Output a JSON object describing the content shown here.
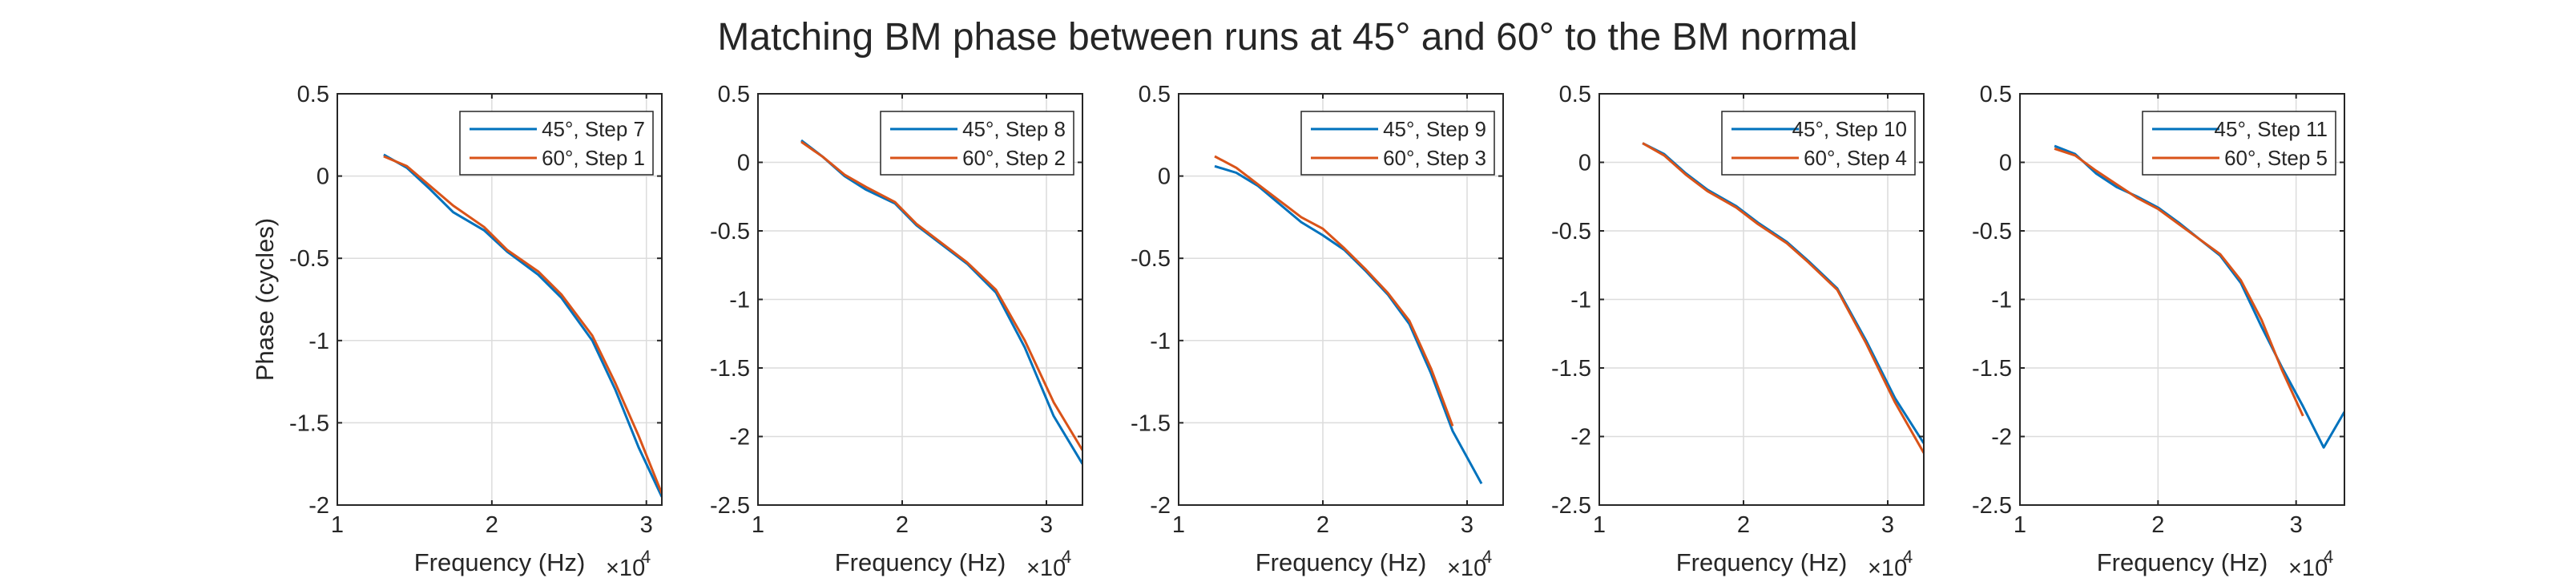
{
  "figure": {
    "title": "Matching BM phase between runs at 45° and 60° to the BM normal"
  },
  "colors": {
    "series1": "#0072BD",
    "series2": "#D95319",
    "grid": "#dcdcdc",
    "axis": "#262626"
  },
  "chart_data": [
    {
      "type": "line",
      "xlabel": "Frequency (Hz)",
      "ylabel": "Phase (cycles)",
      "x_exponent_label": "×10",
      "x_exponent": "4",
      "xlim": [
        10000,
        31000
      ],
      "ylim": [
        -2,
        0.5
      ],
      "xticks": [
        10000,
        20000,
        30000
      ],
      "xtick_labels": [
        "1",
        "2",
        "3"
      ],
      "yticks": [
        -2,
        -1.5,
        -1,
        -0.5,
        0,
        0.5
      ],
      "ytick_labels": [
        "-2",
        "-1.5",
        "-1",
        "-0.5",
        "0",
        "0.5"
      ],
      "grid": true,
      "legend_position": "top-right",
      "series": [
        {
          "name": "45°, Step 7",
          "x": [
            13000,
            14500,
            16000,
            17500,
            19500,
            21000,
            23000,
            24500,
            26500,
            28000,
            29500,
            31000
          ],
          "y": [
            0.13,
            0.05,
            -0.08,
            -0.22,
            -0.33,
            -0.46,
            -0.6,
            -0.74,
            -1.0,
            -1.3,
            -1.65,
            -1.95
          ]
        },
        {
          "name": "60°, Step 1",
          "x": [
            13000,
            14500,
            16000,
            17500,
            19500,
            21000,
            23000,
            24500,
            26500,
            28000,
            29500,
            31000
          ],
          "y": [
            0.12,
            0.06,
            -0.06,
            -0.18,
            -0.31,
            -0.45,
            -0.58,
            -0.72,
            -0.97,
            -1.26,
            -1.58,
            -1.93
          ]
        }
      ]
    },
    {
      "type": "line",
      "xlabel": "Frequency (Hz)",
      "ylabel": "",
      "x_exponent_label": "×10",
      "x_exponent": "4",
      "xlim": [
        10000,
        32500
      ],
      "ylim": [
        -2.5,
        0.5
      ],
      "xticks": [
        10000,
        20000,
        30000
      ],
      "xtick_labels": [
        "1",
        "2",
        "3"
      ],
      "yticks": [
        -2.5,
        -2,
        -1.5,
        -1,
        -0.5,
        0,
        0.5
      ],
      "ytick_labels": [
        "-2.5",
        "-2",
        "-1.5",
        "-1",
        "-0.5",
        "0",
        "0.5"
      ],
      "grid": true,
      "legend_position": "top-right",
      "series": [
        {
          "name": "45°, Step 8",
          "x": [
            13000,
            14500,
            16000,
            17500,
            19500,
            21000,
            23000,
            24500,
            26500,
            28500,
            30500,
            32500
          ],
          "y": [
            0.16,
            0.04,
            -0.1,
            -0.2,
            -0.3,
            -0.46,
            -0.62,
            -0.74,
            -0.95,
            -1.35,
            -1.85,
            -2.2
          ]
        },
        {
          "name": "60°, Step 2",
          "x": [
            13000,
            14500,
            16000,
            17500,
            19500,
            21000,
            23000,
            24500,
            26500,
            28500,
            30500,
            32500
          ],
          "y": [
            0.15,
            0.04,
            -0.09,
            -0.18,
            -0.29,
            -0.45,
            -0.61,
            -0.73,
            -0.93,
            -1.3,
            -1.75,
            -2.1
          ]
        }
      ]
    },
    {
      "type": "line",
      "xlabel": "Frequency (Hz)",
      "ylabel": "",
      "x_exponent_label": "×10",
      "x_exponent": "4",
      "xlim": [
        10000,
        32500
      ],
      "ylim": [
        -2,
        0.5
      ],
      "xticks": [
        10000,
        20000,
        30000
      ],
      "xtick_labels": [
        "1",
        "2",
        "3"
      ],
      "yticks": [
        -2,
        -1.5,
        -1,
        -0.5,
        0,
        0.5
      ],
      "ytick_labels": [
        "-2",
        "-1.5",
        "-1",
        "-0.5",
        "0",
        "0.5"
      ],
      "grid": true,
      "legend_position": "top-right",
      "series": [
        {
          "name": "45°, Step 9",
          "x": [
            12500,
            14000,
            15500,
            17000,
            18500,
            20000,
            21500,
            23000,
            24500,
            26000,
            27500,
            29000,
            31000
          ],
          "y": [
            0.06,
            0.02,
            -0.06,
            -0.17,
            -0.28,
            -0.36,
            -0.45,
            -0.58,
            -0.72,
            -0.9,
            -1.2,
            -1.55,
            -1.87
          ]
        },
        {
          "name": "60°, Step 3",
          "x": [
            12500,
            14000,
            15500,
            17000,
            18500,
            20000,
            21500,
            23000,
            24500,
            26000,
            27500,
            29000
          ],
          "y": [
            0.12,
            0.05,
            -0.05,
            -0.15,
            -0.25,
            -0.32,
            -0.44,
            -0.57,
            -0.71,
            -0.88,
            -1.17,
            -1.52
          ]
        }
      ]
    },
    {
      "type": "line",
      "xlabel": "Frequency (Hz)",
      "ylabel": "",
      "x_exponent_label": "×10",
      "x_exponent": "4",
      "xlim": [
        10000,
        32500
      ],
      "ylim": [
        -2.5,
        0.5
      ],
      "xticks": [
        10000,
        20000,
        30000
      ],
      "xtick_labels": [
        "1",
        "2",
        "3"
      ],
      "yticks": [
        -2.5,
        -2,
        -1.5,
        -1,
        -0.5,
        0,
        0.5
      ],
      "ytick_labels": [
        "-2.5",
        "-2",
        "-1.5",
        "-1",
        "-0.5",
        "0",
        "0.5"
      ],
      "grid": true,
      "legend_position": "top-right",
      "series": [
        {
          "name": "45°, Step 10",
          "x": [
            13000,
            14500,
            16000,
            17500,
            19500,
            21000,
            23000,
            24500,
            26500,
            28500,
            30500,
            32500
          ],
          "y": [
            0.14,
            0.06,
            -0.08,
            -0.2,
            -0.32,
            -0.44,
            -0.58,
            -0.72,
            -0.92,
            -1.3,
            -1.72,
            -2.05
          ]
        },
        {
          "name": "60°, Step 4",
          "x": [
            13000,
            14500,
            16000,
            17500,
            19500,
            21000,
            23000,
            24500,
            26500,
            28500,
            30500,
            32500
          ],
          "y": [
            0.14,
            0.05,
            -0.09,
            -0.21,
            -0.33,
            -0.45,
            -0.59,
            -0.73,
            -0.93,
            -1.32,
            -1.75,
            -2.12
          ]
        }
      ]
    },
    {
      "type": "line",
      "xlabel": "Frequency (Hz)",
      "ylabel": "",
      "x_exponent_label": "×10",
      "x_exponent": "4",
      "xlim": [
        10000,
        33500
      ],
      "ylim": [
        -2.5,
        0.5
      ],
      "xticks": [
        10000,
        20000,
        30000
      ],
      "xtick_labels": [
        "1",
        "2",
        "3"
      ],
      "yticks": [
        -2.5,
        -2,
        -1.5,
        -1,
        -0.5,
        0,
        0.5
      ],
      "ytick_labels": [
        "-2.5",
        "-2",
        "-1.5",
        "-1",
        "-0.5",
        "0",
        "0.5"
      ],
      "grid": true,
      "legend_position": "top-right",
      "series": [
        {
          "name": "45°, Step 11",
          "x": [
            12500,
            14000,
            15500,
            17000,
            18500,
            20000,
            21500,
            23000,
            24500,
            26000,
            27500,
            29000,
            30500,
            32000,
            33500
          ],
          "y": [
            0.12,
            0.06,
            -0.08,
            -0.18,
            -0.25,
            -0.33,
            -0.44,
            -0.56,
            -0.68,
            -0.88,
            -1.2,
            -1.5,
            -1.78,
            -2.08,
            -1.82
          ]
        },
        {
          "name": "60°, Step 5",
          "x": [
            12500,
            14000,
            15500,
            17000,
            18500,
            20000,
            21500,
            23000,
            24500,
            26000,
            27500,
            29000,
            30500
          ],
          "y": [
            0.1,
            0.05,
            -0.06,
            -0.16,
            -0.26,
            -0.34,
            -0.45,
            -0.56,
            -0.67,
            -0.86,
            -1.15,
            -1.52,
            -1.85
          ]
        }
      ]
    }
  ]
}
